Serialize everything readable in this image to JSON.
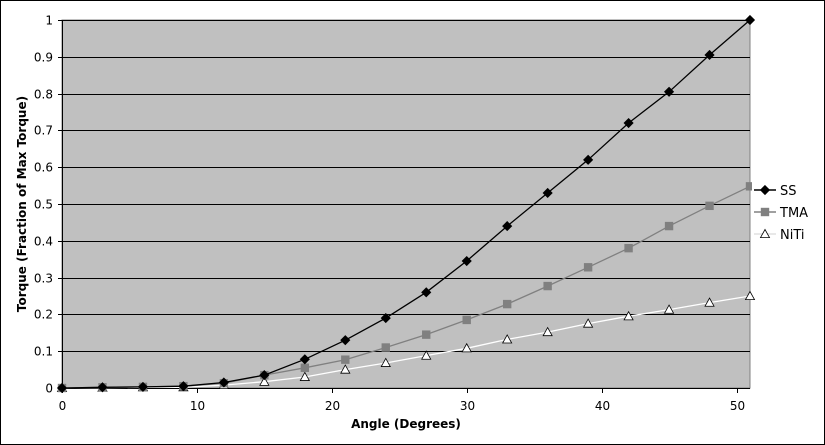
{
  "chart_data": {
    "type": "line",
    "title": "",
    "xlabel": "Angle (Degrees)",
    "ylabel": "Torque (Fraction of Max Torque)",
    "xlim": [
      0,
      51
    ],
    "ylim": [
      0,
      1
    ],
    "x_ticks": [
      0,
      10,
      20,
      30,
      40,
      50
    ],
    "y_ticks": [
      0,
      0.1,
      0.2,
      0.3,
      0.4,
      0.5,
      0.6,
      0.7,
      0.8,
      0.9,
      1
    ],
    "grid": "horizontal",
    "plot_background": "#c0c0c0",
    "legend_position": "right",
    "x": [
      0,
      3,
      6,
      9,
      12,
      15,
      18,
      21,
      24,
      27,
      30,
      33,
      36,
      39,
      42,
      45,
      48,
      51
    ],
    "series": [
      {
        "name": "SS",
        "color": "#000000",
        "marker": "diamond",
        "values": [
          0,
          0.002,
          0.003,
          0.005,
          0.015,
          0.035,
          0.078,
          0.13,
          0.19,
          0.26,
          0.345,
          0.44,
          0.53,
          0.62,
          0.72,
          0.805,
          0.905,
          1.0
        ]
      },
      {
        "name": "TMA",
        "color": "#808080",
        "marker": "square",
        "values": [
          0,
          0.002,
          0.003,
          0.005,
          0.013,
          0.035,
          0.055,
          0.077,
          0.11,
          0.145,
          0.185,
          0.228,
          0.277,
          0.328,
          0.38,
          0.44,
          0.495,
          0.548
        ]
      },
      {
        "name": "NiTi",
        "color": "#ffffff",
        "marker": "triangle",
        "values": [
          0,
          0.001,
          0.002,
          0.002,
          0.008,
          0.017,
          0.03,
          0.05,
          0.068,
          0.088,
          0.108,
          0.132,
          0.152,
          0.175,
          0.195,
          0.213,
          0.232,
          0.25
        ]
      }
    ]
  }
}
